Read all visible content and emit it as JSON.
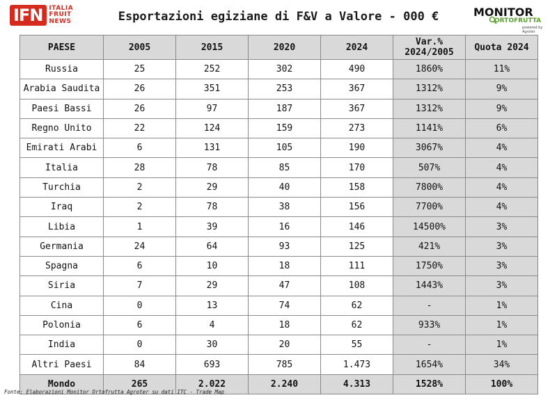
{
  "header": {
    "ifn_logo": {
      "mark": "IFN",
      "line1": "ITALIA",
      "line2": "FRUIT",
      "line3": "NEWS"
    },
    "title": "Esportazioni egiziane di F&V a Valore - 000 €",
    "monitor_logo": {
      "line1": "MONITOR",
      "line2": "ORTOFRUTTA",
      "line3": "powered by Agroter"
    }
  },
  "colors": {
    "header_fill": "#d9d9d9",
    "ifn_red": "#d52b1e",
    "monitor_green": "#5aa02c"
  },
  "chart_data": {
    "type": "table",
    "title": "Esportazioni egiziane di F&V a Valore - 000 €",
    "columns": [
      "PAESE",
      "2005",
      "2015",
      "2020",
      "2024",
      "Var.%\n2024/2005",
      "Quota 2024"
    ],
    "columns_display": [
      [
        "PAESE"
      ],
      [
        "2005"
      ],
      [
        "2015"
      ],
      [
        "2020"
      ],
      [
        "2024"
      ],
      [
        "Var.%",
        "2024/2005"
      ],
      [
        "Quota 2024"
      ]
    ],
    "rows": [
      [
        "Russia",
        "25",
        "252",
        "302",
        "490",
        "1860%",
        "11%"
      ],
      [
        "Arabia Saudita",
        "26",
        "351",
        "253",
        "367",
        "1312%",
        "9%"
      ],
      [
        "Paesi Bassi",
        "26",
        "97",
        "187",
        "367",
        "1312%",
        "9%"
      ],
      [
        "Regno Unito",
        "22",
        "124",
        "159",
        "273",
        "1141%",
        "6%"
      ],
      [
        "Emirati Arabi",
        "6",
        "131",
        "105",
        "190",
        "3067%",
        "4%"
      ],
      [
        "Italia",
        "28",
        "78",
        "85",
        "170",
        "507%",
        "4%"
      ],
      [
        "Turchia",
        "2",
        "29",
        "40",
        "158",
        "7800%",
        "4%"
      ],
      [
        "Iraq",
        "2",
        "78",
        "38",
        "156",
        "7700%",
        "4%"
      ],
      [
        "Libia",
        "1",
        "39",
        "16",
        "146",
        "14500%",
        "3%"
      ],
      [
        "Germania",
        "24",
        "64",
        "93",
        "125",
        "421%",
        "3%"
      ],
      [
        "Spagna",
        "6",
        "10",
        "18",
        "111",
        "1750%",
        "3%"
      ],
      [
        "Siria",
        "7",
        "29",
        "47",
        "108",
        "1443%",
        "3%"
      ],
      [
        "Cina",
        "0",
        "13",
        "74",
        "62",
        "-",
        "1%"
      ],
      [
        "Polonia",
        "6",
        "4",
        "18",
        "62",
        "933%",
        "1%"
      ],
      [
        "India",
        "0",
        "30",
        "20",
        "55",
        "-",
        "1%"
      ],
      [
        "Altri Paesi",
        "84",
        "693",
        "785",
        "1.473",
        "1654%",
        "34%"
      ]
    ],
    "total": [
      "Mondo",
      "265",
      "2.022",
      "2.240",
      "4.313",
      "1528%",
      "100%"
    ]
  },
  "source": "Fonte: Elaborazioni Monitor Ortofrutta Agroter su dati ITC - Trade Map"
}
